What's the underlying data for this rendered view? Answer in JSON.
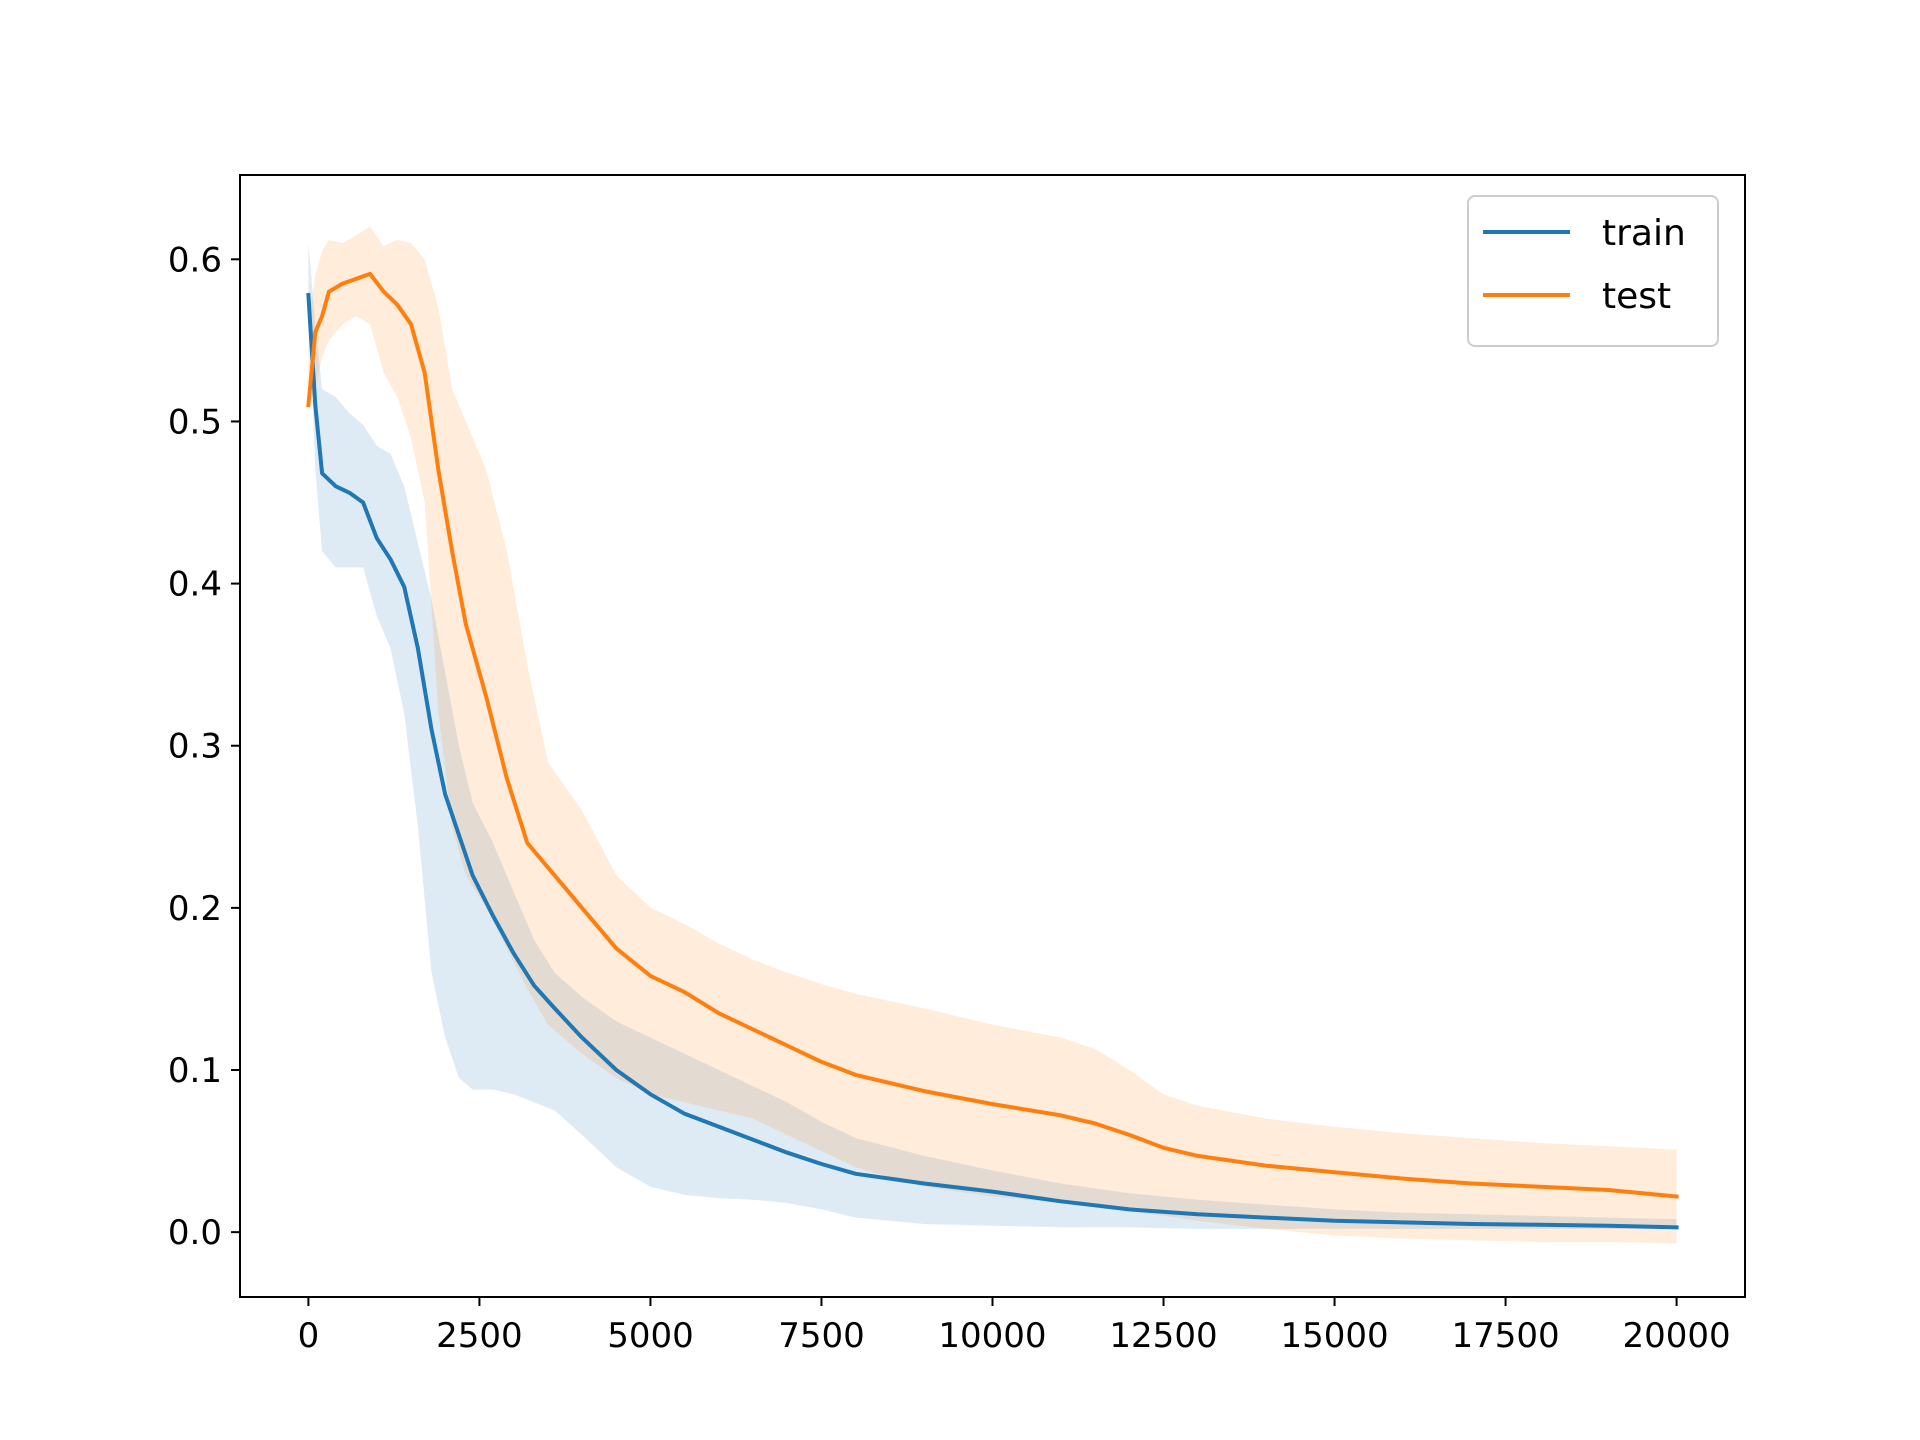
{
  "chart_data": {
    "type": "line",
    "title": "",
    "xlabel": "",
    "ylabel": "",
    "xlim": [
      -1000,
      21000
    ],
    "ylim": [
      -0.04,
      0.652
    ],
    "x_ticks": [
      0,
      2500,
      5000,
      7500,
      10000,
      12500,
      15000,
      17500,
      20000
    ],
    "x_tick_labels": [
      "0",
      "2500",
      "5000",
      "7500",
      "10000",
      "12500",
      "15000",
      "17500",
      "20000"
    ],
    "y_ticks": [
      0.0,
      0.1,
      0.2,
      0.3,
      0.4,
      0.5,
      0.6
    ],
    "y_tick_labels": [
      "0.0",
      "0.1",
      "0.2",
      "0.3",
      "0.4",
      "0.5",
      "0.6"
    ],
    "grid": false,
    "legend_position": "top-right",
    "series": [
      {
        "name": "train",
        "color": "#1f77b4",
        "band_opacity": 0.15,
        "x": [
          0,
          100,
          200,
          400,
          600,
          800,
          1000,
          1200,
          1400,
          1600,
          1800,
          2000,
          2200,
          2400,
          2700,
          3000,
          3300,
          3600,
          4000,
          4500,
          5000,
          5500,
          6000,
          6500,
          7000,
          7500,
          8000,
          9000,
          10000,
          11000,
          12000,
          13000,
          14000,
          15000,
          16000,
          17000,
          18000,
          19000,
          20000
        ],
        "y": [
          0.578,
          0.51,
          0.468,
          0.46,
          0.456,
          0.45,
          0.428,
          0.415,
          0.398,
          0.36,
          0.31,
          0.27,
          0.245,
          0.22,
          0.195,
          0.172,
          0.152,
          0.138,
          0.12,
          0.1,
          0.085,
          0.073,
          0.065,
          0.057,
          0.049,
          0.042,
          0.036,
          0.03,
          0.025,
          0.019,
          0.014,
          0.011,
          0.009,
          0.007,
          0.006,
          0.005,
          0.0045,
          0.004,
          0.003
        ],
        "lower": [
          0.578,
          0.47,
          0.42,
          0.41,
          0.41,
          0.41,
          0.38,
          0.36,
          0.32,
          0.25,
          0.16,
          0.12,
          0.095,
          0.088,
          0.088,
          0.085,
          0.08,
          0.075,
          0.06,
          0.04,
          0.028,
          0.023,
          0.021,
          0.02,
          0.018,
          0.014,
          0.009,
          0.005,
          0.004,
          0.003,
          0.003,
          0.002,
          0.002,
          0.002,
          0.002,
          0.002,
          0.002,
          0.002,
          0.002
        ],
        "upper": [
          0.61,
          0.56,
          0.52,
          0.515,
          0.505,
          0.498,
          0.485,
          0.48,
          0.46,
          0.425,
          0.39,
          0.345,
          0.3,
          0.265,
          0.24,
          0.21,
          0.18,
          0.16,
          0.145,
          0.13,
          0.12,
          0.11,
          0.1,
          0.09,
          0.08,
          0.068,
          0.058,
          0.047,
          0.038,
          0.03,
          0.024,
          0.02,
          0.017,
          0.014,
          0.012,
          0.011,
          0.01,
          0.009,
          0.008
        ]
      },
      {
        "name": "test",
        "color": "#ff7f0e",
        "band_opacity": 0.15,
        "x": [
          0,
          100,
          200,
          300,
          500,
          700,
          900,
          1100,
          1300,
          1500,
          1700,
          1900,
          2100,
          2300,
          2600,
          2900,
          3200,
          3500,
          4000,
          4500,
          5000,
          5500,
          6000,
          6500,
          7000,
          7500,
          8000,
          9000,
          10000,
          11000,
          11500,
          12000,
          12500,
          13000,
          14000,
          15000,
          16000,
          17000,
          18000,
          19000,
          20000
        ],
        "y": [
          0.51,
          0.555,
          0.565,
          0.58,
          0.585,
          0.588,
          0.591,
          0.58,
          0.572,
          0.56,
          0.53,
          0.47,
          0.42,
          0.375,
          0.33,
          0.28,
          0.24,
          0.225,
          0.2,
          0.175,
          0.158,
          0.148,
          0.135,
          0.125,
          0.115,
          0.105,
          0.097,
          0.087,
          0.079,
          0.072,
          0.067,
          0.06,
          0.052,
          0.047,
          0.041,
          0.037,
          0.033,
          0.03,
          0.028,
          0.026,
          0.022
        ],
        "lower": [
          0.51,
          0.52,
          0.54,
          0.55,
          0.56,
          0.565,
          0.56,
          0.53,
          0.515,
          0.49,
          0.45,
          0.32,
          0.25,
          0.22,
          0.2,
          0.175,
          0.15,
          0.128,
          0.11,
          0.095,
          0.085,
          0.08,
          0.075,
          0.07,
          0.06,
          0.05,
          0.04,
          0.028,
          0.022,
          0.018,
          0.016,
          0.013,
          0.01,
          0.007,
          0.002,
          -0.002,
          -0.004,
          -0.005,
          -0.006,
          -0.006,
          -0.007
        ],
        "upper": [
          0.56,
          0.59,
          0.605,
          0.612,
          0.61,
          0.615,
          0.62,
          0.608,
          0.612,
          0.61,
          0.6,
          0.57,
          0.52,
          0.5,
          0.47,
          0.42,
          0.35,
          0.29,
          0.26,
          0.22,
          0.2,
          0.19,
          0.178,
          0.168,
          0.16,
          0.153,
          0.147,
          0.138,
          0.128,
          0.12,
          0.113,
          0.1,
          0.085,
          0.078,
          0.07,
          0.065,
          0.061,
          0.058,
          0.055,
          0.053,
          0.051
        ]
      }
    ]
  }
}
